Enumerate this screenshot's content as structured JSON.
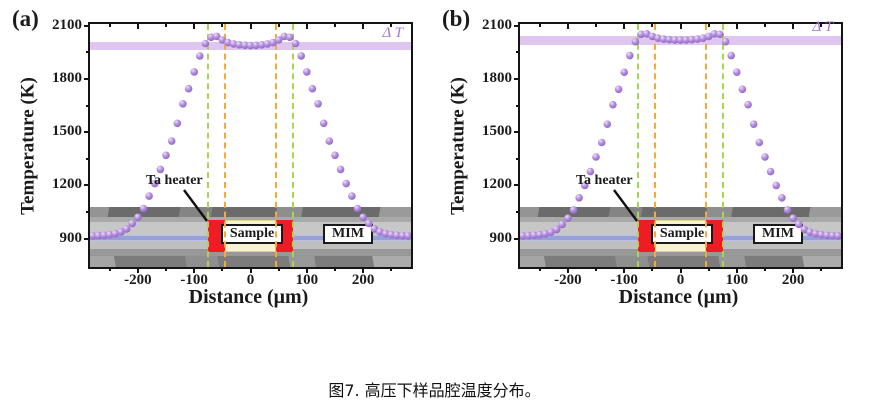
{
  "figure": {
    "caption": "图7. 高压下样品腔温度分布。"
  },
  "colors": {
    "point_body": "#b48fdc",
    "point_edge": "#8a5ec4",
    "point_highlight": "#eee0fb",
    "band": "#dcc0ee",
    "delta_t_text": "#a678cc",
    "guide_green": "#aad64f",
    "guide_orange": "#f4a93b",
    "heater_red": "#ee1c25",
    "sample_fill": "#f7f3cf",
    "axis": "#141414"
  },
  "chart_data": [
    {
      "type": "scatter",
      "panel_label": "(a)",
      "xlabel": "Distance (μm)",
      "ylabel": "Temperature (K)",
      "xlim": [
        -285,
        285
      ],
      "ylim": [
        740,
        2110
      ],
      "x_ticks": [
        -200,
        -100,
        0,
        100,
        200
      ],
      "y_ticks": [
        900,
        1200,
        1500,
        1800,
        2100
      ],
      "x_minor_ticks": [
        -250,
        -150,
        -50,
        50,
        150,
        250
      ],
      "y_minor_ticks": [
        1050,
        1350,
        1650,
        1950
      ],
      "grid": false,
      "band": {
        "label": "Δ T",
        "t_low": 1965,
        "t_high": 2010
      },
      "guides": [
        {
          "x": -75,
          "color": "green"
        },
        {
          "x": -46,
          "color": "orange"
        },
        {
          "x": 46,
          "color": "orange"
        },
        {
          "x": 75,
          "color": "green"
        }
      ],
      "series": [
        {
          "name": "temperature-profile",
          "x": [
            -280,
            -270,
            -260,
            -250,
            -240,
            -230,
            -220,
            -210,
            -200,
            -190,
            -180,
            -170,
            -160,
            -150,
            -140,
            -130,
            -120,
            -110,
            -100,
            -90,
            -80,
            -70,
            -60,
            -50,
            -40,
            -30,
            -20,
            -10,
            0,
            10,
            20,
            30,
            40,
            50,
            60,
            70,
            80,
            90,
            100,
            110,
            120,
            130,
            140,
            150,
            160,
            170,
            180,
            190,
            200,
            210,
            220,
            230,
            240,
            250,
            260,
            270,
            280
          ],
          "y": [
            916,
            917,
            919,
            922,
            928,
            938,
            955,
            985,
            1020,
            1070,
            1140,
            1210,
            1290,
            1370,
            1450,
            1550,
            1660,
            1745,
            1840,
            1930,
            2000,
            2035,
            2040,
            2020,
            2005,
            1998,
            1993,
            1990,
            1988,
            1990,
            1993,
            1998,
            2005,
            2020,
            2040,
            2035,
            2000,
            1930,
            1840,
            1745,
            1660,
            1550,
            1450,
            1370,
            1290,
            1210,
            1140,
            1070,
            1020,
            985,
            955,
            938,
            928,
            922,
            919,
            917,
            916
          ]
        }
      ],
      "inset": {
        "ta_heater_label": "Ta heater",
        "sample_label": "Sample",
        "mim_label": "MIM"
      }
    },
    {
      "type": "scatter",
      "panel_label": "(b)",
      "xlabel": "Distance (μm)",
      "ylabel": "Temperature (K)",
      "xlim": [
        -285,
        285
      ],
      "ylim": [
        740,
        2110
      ],
      "x_ticks": [
        -200,
        -100,
        0,
        100,
        200
      ],
      "y_ticks": [
        900,
        1200,
        1500,
        1800,
        2100
      ],
      "x_minor_ticks": [
        -250,
        -150,
        -50,
        50,
        150,
        250
      ],
      "y_minor_ticks": [
        1050,
        1350,
        1650,
        1950
      ],
      "grid": false,
      "band": {
        "label": "Δ T",
        "t_low": 1990,
        "t_high": 2045
      },
      "guides": [
        {
          "x": -75,
          "color": "green"
        },
        {
          "x": -46,
          "color": "orange"
        },
        {
          "x": 46,
          "color": "orange"
        },
        {
          "x": 75,
          "color": "green"
        }
      ],
      "series": [
        {
          "name": "temperature-profile",
          "x": [
            -280,
            -270,
            -260,
            -250,
            -240,
            -230,
            -220,
            -210,
            -200,
            -190,
            -180,
            -170,
            -160,
            -150,
            -140,
            -130,
            -120,
            -110,
            -100,
            -90,
            -80,
            -70,
            -60,
            -50,
            -40,
            -30,
            -20,
            -10,
            0,
            10,
            20,
            30,
            40,
            50,
            60,
            70,
            80,
            90,
            100,
            110,
            120,
            130,
            140,
            150,
            160,
            170,
            180,
            190,
            200,
            210,
            220,
            230,
            240,
            250,
            260,
            270,
            280
          ],
          "y": [
            916,
            917,
            919,
            922,
            927,
            936,
            952,
            980,
            1015,
            1062,
            1130,
            1200,
            1278,
            1360,
            1442,
            1545,
            1655,
            1742,
            1838,
            1932,
            2010,
            2052,
            2055,
            2040,
            2030,
            2025,
            2022,
            2020,
            2019,
            2020,
            2022,
            2025,
            2030,
            2040,
            2055,
            2052,
            2010,
            1932,
            1838,
            1742,
            1655,
            1545,
            1442,
            1360,
            1278,
            1200,
            1130,
            1062,
            1015,
            980,
            952,
            936,
            927,
            922,
            919,
            917,
            916
          ]
        }
      ],
      "inset": {
        "ta_heater_label": "Ta heater",
        "sample_label": "Sample",
        "mim_label": "MIM"
      }
    }
  ]
}
